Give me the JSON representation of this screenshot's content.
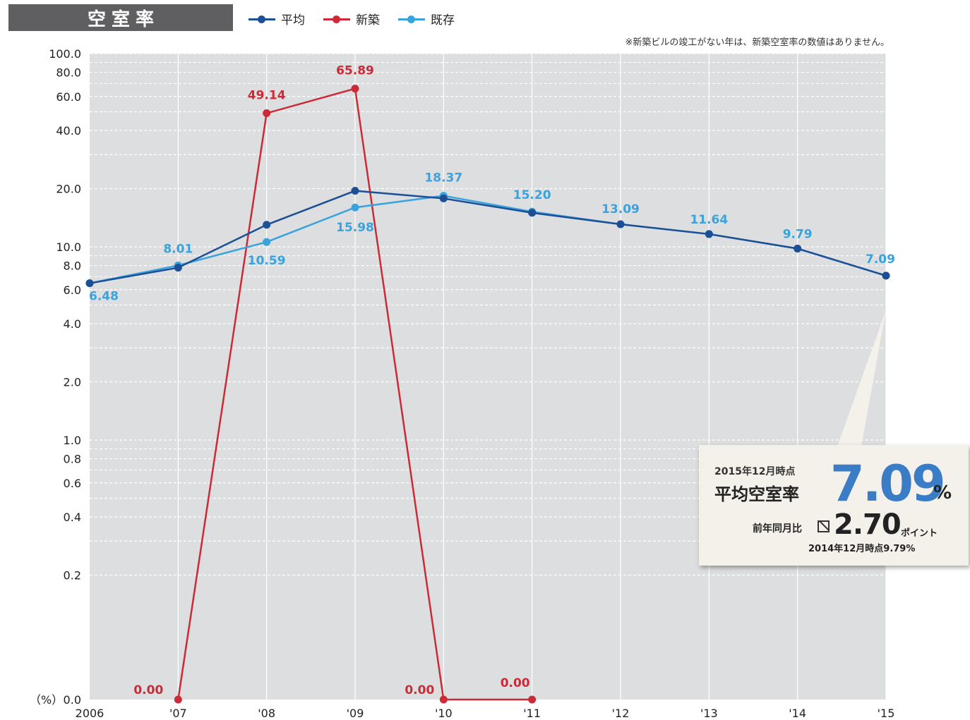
{
  "header": {
    "title": "空室率"
  },
  "legend": [
    {
      "label": "平均",
      "color": "#1c4f96"
    },
    {
      "label": "新築",
      "color": "#cc2a36"
    },
    {
      "label": "既存",
      "color": "#3aa3dd"
    }
  ],
  "footnote": "※新築ビルの竣工がない年は、新築空室率の数値はありません。",
  "callout": {
    "date": "2015年12月時点",
    "label": "平均空室率",
    "value": "7.09",
    "unit": "%",
    "yoy_label": "前年同月比",
    "yoy_value": "2.70",
    "yoy_unit": "ポイント",
    "prev": "2014年12月時点9.79%"
  },
  "chart_data": {
    "type": "line",
    "y_unit_label": "（%）",
    "y_scale": "log",
    "x": [
      "2006",
      "'07",
      "'08",
      "'09",
      "'10",
      "'11",
      "'12",
      "'13",
      "'14",
      "'15"
    ],
    "y_ticks": [
      "100.0",
      "80.0",
      "60.0",
      "40.0",
      "20.0",
      "10.0",
      "8.0",
      "6.0",
      "4.0",
      "2.0",
      "1.0",
      "0.8",
      "0.6",
      "0.4",
      "0.2",
      "0.0"
    ],
    "y_tick_values": [
      100,
      80,
      60,
      40,
      20,
      10,
      8,
      6,
      4,
      2,
      1,
      0.8,
      0.6,
      0.4,
      0.2,
      0
    ],
    "grid": true,
    "legend_position": "top",
    "series": [
      {
        "name": "平均",
        "color": "#1c4f96",
        "values": [
          6.48,
          7.8,
          13.0,
          19.5,
          17.8,
          15.0,
          13.09,
          11.64,
          9.79,
          7.09
        ]
      },
      {
        "name": "新築",
        "color": "#cc2a36",
        "values": [
          null,
          0.0,
          49.14,
          65.89,
          0.0,
          0.0,
          null,
          null,
          null,
          null
        ],
        "labels": [
          null,
          "0.00",
          "49.14",
          "65.89",
          "0.00",
          "0.00",
          null,
          null,
          null,
          null
        ]
      },
      {
        "name": "既存",
        "color": "#3aa3dd",
        "values": [
          6.48,
          8.01,
          10.59,
          15.98,
          18.37,
          15.2,
          13.09,
          11.64,
          9.79,
          7.09
        ],
        "labels": [
          "6.48",
          "8.01",
          "10.59",
          "15.98",
          "18.37",
          "15.20",
          "13.09",
          "11.64",
          "9.79",
          "7.09"
        ]
      }
    ]
  }
}
